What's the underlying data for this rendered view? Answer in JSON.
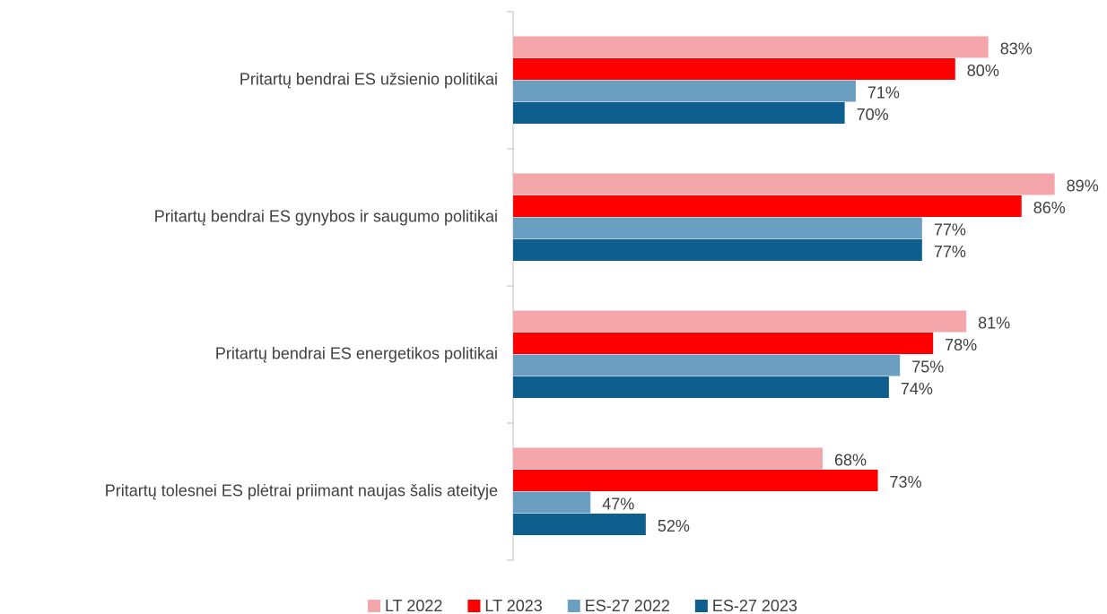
{
  "chart_data": {
    "type": "hbar",
    "categories": [
      "Pritartų bendrai ES užsienio politikai",
      "Pritartų bendrai ES gynybos ir saugumo politikai",
      "Pritartų bendrai ES energetikos politikai",
      "Pritartų tolesnei ES plėtrai priimant naujas šalis ateityje"
    ],
    "series": [
      {
        "name": "LT 2022",
        "color": "#f4a6ab",
        "values": [
          83,
          89,
          81,
          68
        ],
        "value_labels": [
          "83%",
          "89%",
          "81%",
          "68%"
        ]
      },
      {
        "name": "LT 2023",
        "color": "#ff0000",
        "values": [
          80,
          86,
          78,
          73
        ],
        "value_labels": [
          "80%",
          "86%",
          "78%",
          "73%"
        ]
      },
      {
        "name": "ES-27 2022",
        "color": "#6a9fc2",
        "values": [
          71,
          77,
          75,
          47
        ],
        "value_labels": [
          "71%",
          "77%",
          "75%",
          "47%"
        ]
      },
      {
        "name": "ES-27 2023",
        "color": "#0e5e8e",
        "values": [
          70,
          77,
          74,
          52
        ],
        "value_labels": [
          "70%",
          "77%",
          "74%",
          "52%"
        ]
      }
    ],
    "xlim": [
      40,
      90
    ],
    "legend": "bottom"
  }
}
